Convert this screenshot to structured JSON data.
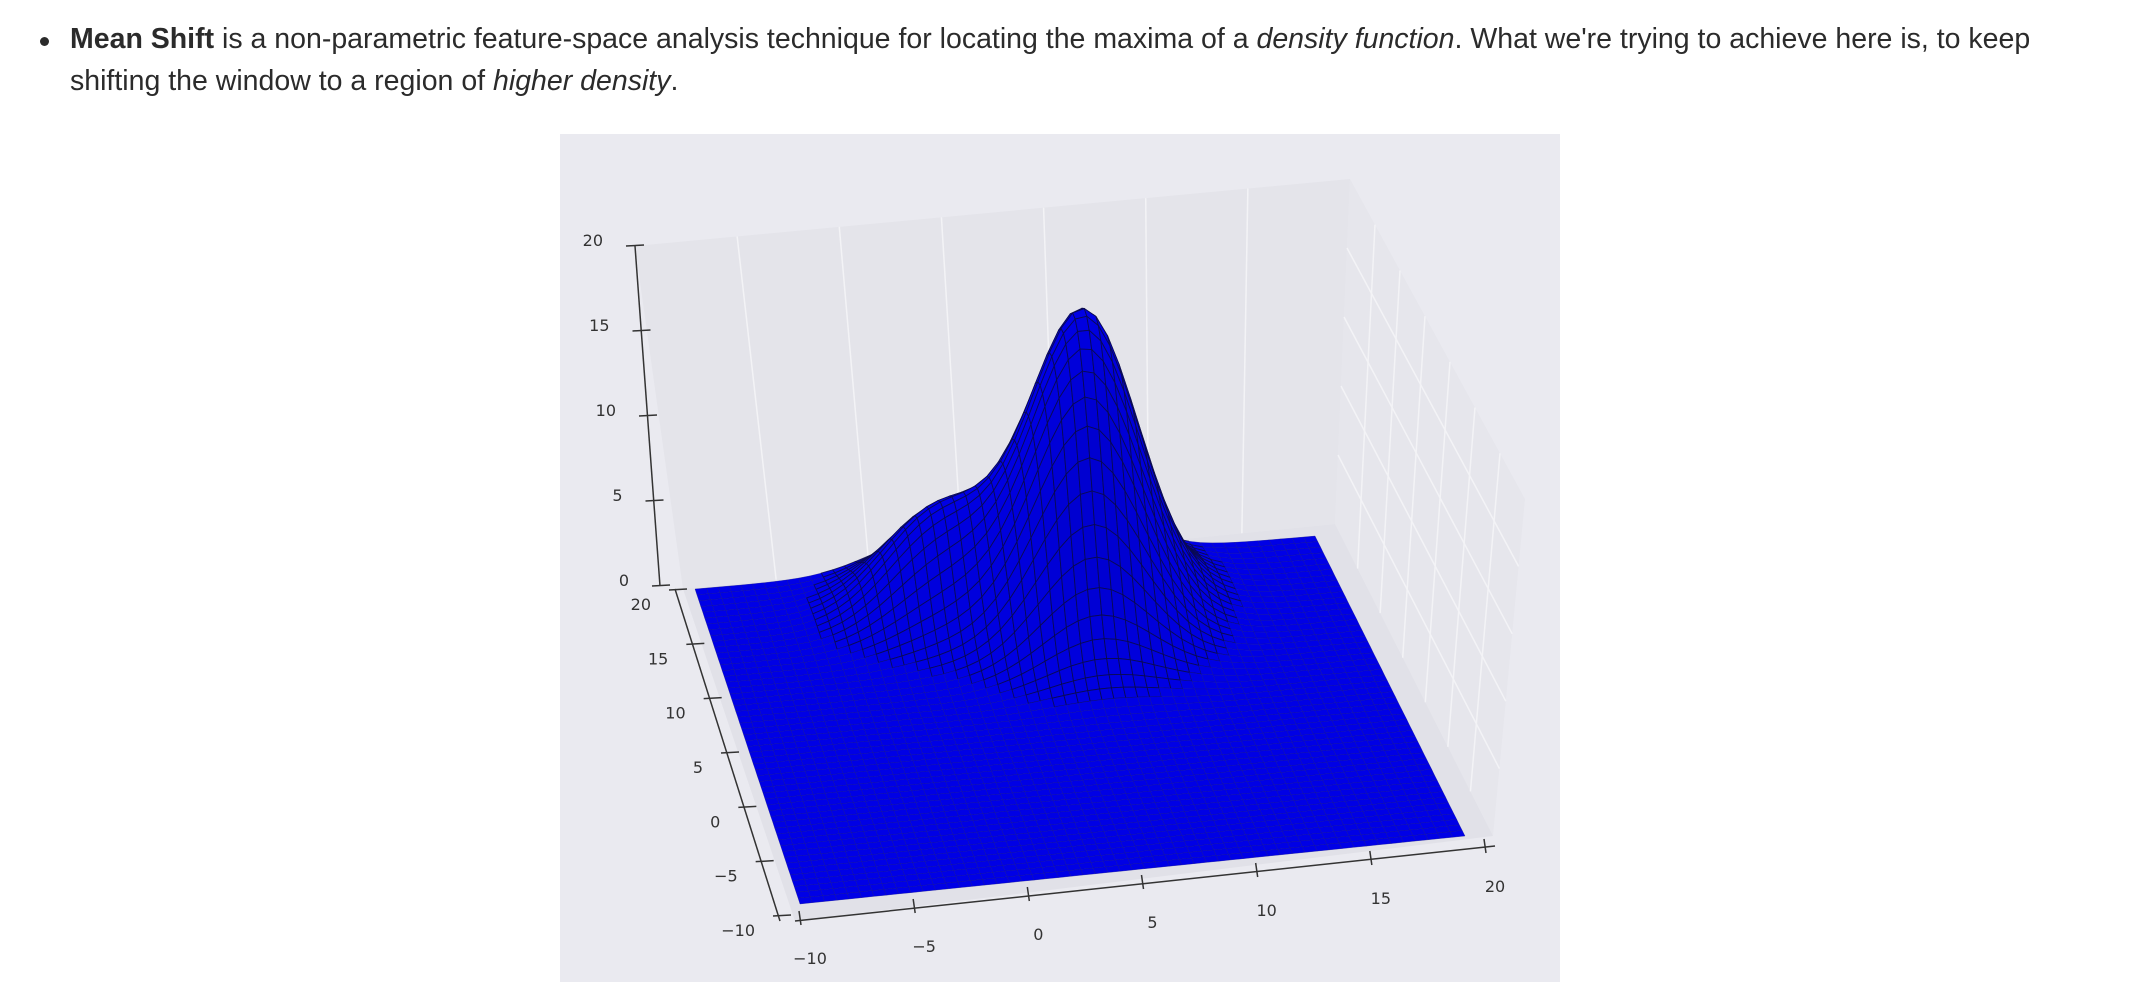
{
  "text": {
    "term": "Mean Shift",
    "part1": " is a non-parametric feature-space analysis technique for locating the maxima of a ",
    "emph1": "density function",
    "part2": ". What we're trying to achieve here is, to keep shifting the window to a region of ",
    "emph2": "higher density",
    "part3": "."
  },
  "chart_data": {
    "type": "surface3d",
    "title": "",
    "xlabel": "",
    "ylabel": "",
    "zlabel": "",
    "xlim": [
      -10,
      20
    ],
    "ylim": [
      -10,
      20
    ],
    "zlim": [
      0,
      20
    ],
    "x_ticks": [
      "−10",
      "−5",
      "0",
      "5",
      "10",
      "15",
      "20"
    ],
    "y_ticks": [
      "−10",
      "−5",
      "0",
      "5",
      "10",
      "15",
      "20"
    ],
    "z_ticks": [
      "0",
      "5",
      "10",
      "15",
      "20"
    ],
    "surface_color": "#0000ff",
    "peaks": [
      {
        "x": 1,
        "y": 16,
        "z": 6
      },
      {
        "x": 7,
        "y": 12,
        "z": 10
      },
      {
        "x": 8,
        "y": 16,
        "z": 14.5
      }
    ],
    "grid": true,
    "background": "#eaeaf0"
  }
}
